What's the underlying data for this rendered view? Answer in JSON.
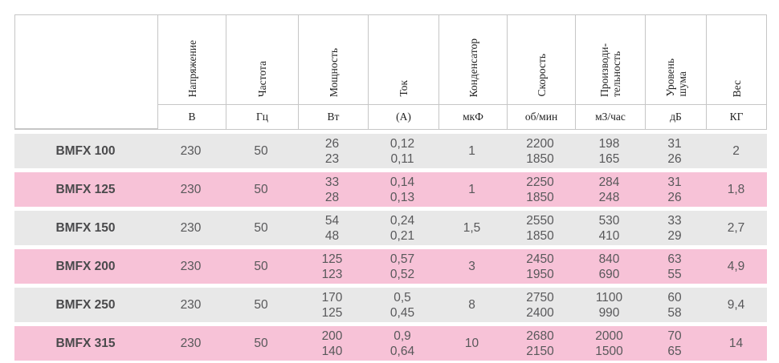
{
  "colors": {
    "row_alt_gray": "#e8e8e8",
    "row_alt_pink": "#f7c2d7",
    "header_border": "#c6c6c6",
    "data_text": "#58585a",
    "model_text": "#4a4a4c"
  },
  "table": {
    "columns": [
      {
        "label": "",
        "unit": ""
      },
      {
        "label": "Напряжение",
        "unit": "В"
      },
      {
        "label": "Частота",
        "unit": "Гц"
      },
      {
        "label": "Мощность",
        "unit": "Вт"
      },
      {
        "label": "Ток",
        "unit": "(А)"
      },
      {
        "label": "Конденсатор",
        "unit": "мкФ"
      },
      {
        "label": "Скорость",
        "unit": "об/мин"
      },
      {
        "label": "Производи-\nтельность",
        "unit": "м3/час"
      },
      {
        "label": "Уровень\nшума",
        "unit": "дБ"
      },
      {
        "label": "Вес",
        "unit": "КГ"
      }
    ],
    "rows": [
      {
        "model": "BMFX 100",
        "voltage": "230",
        "frequency": "50",
        "power": "26\n23",
        "current": "0,12\n0,11",
        "capacitor": "1",
        "speed": "2200\n1850",
        "capacity": "198\n165",
        "noise": "31\n26",
        "weight": "2"
      },
      {
        "model": "BMFX 125",
        "voltage": "230",
        "frequency": "50",
        "power": "33\n28",
        "current": "0,14\n0,13",
        "capacitor": "1",
        "speed": "2250\n1850",
        "capacity": "284\n248",
        "noise": "31\n26",
        "weight": "1,8"
      },
      {
        "model": "BMFX 150",
        "voltage": "230",
        "frequency": "50",
        "power": "54\n48",
        "current": "0,24\n0,21",
        "capacitor": "1,5",
        "speed": "2550\n1850",
        "capacity": "530\n410",
        "noise": "33\n29",
        "weight": "2,7"
      },
      {
        "model": "BMFX 200",
        "voltage": "230",
        "frequency": "50",
        "power": "125\n123",
        "current": "0,57\n0,52",
        "capacitor": "3",
        "speed": "2450\n1950",
        "capacity": "840\n690",
        "noise": "63\n55",
        "weight": "4,9"
      },
      {
        "model": "BMFX 250",
        "voltage": "230",
        "frequency": "50",
        "power": "170\n125",
        "current": "0,5\n0,45",
        "capacitor": "8",
        "speed": "2750\n2400",
        "capacity": "1100\n990",
        "noise": "60\n58",
        "weight": "9,4"
      },
      {
        "model": "BMFX 315",
        "voltage": "230",
        "frequency": "50",
        "power": "200\n140",
        "current": "0,9\n0,64",
        "capacitor": "10",
        "speed": "2680\n2150",
        "capacity": "2000\n1500",
        "noise": "70\n65",
        "weight": "14"
      }
    ]
  }
}
